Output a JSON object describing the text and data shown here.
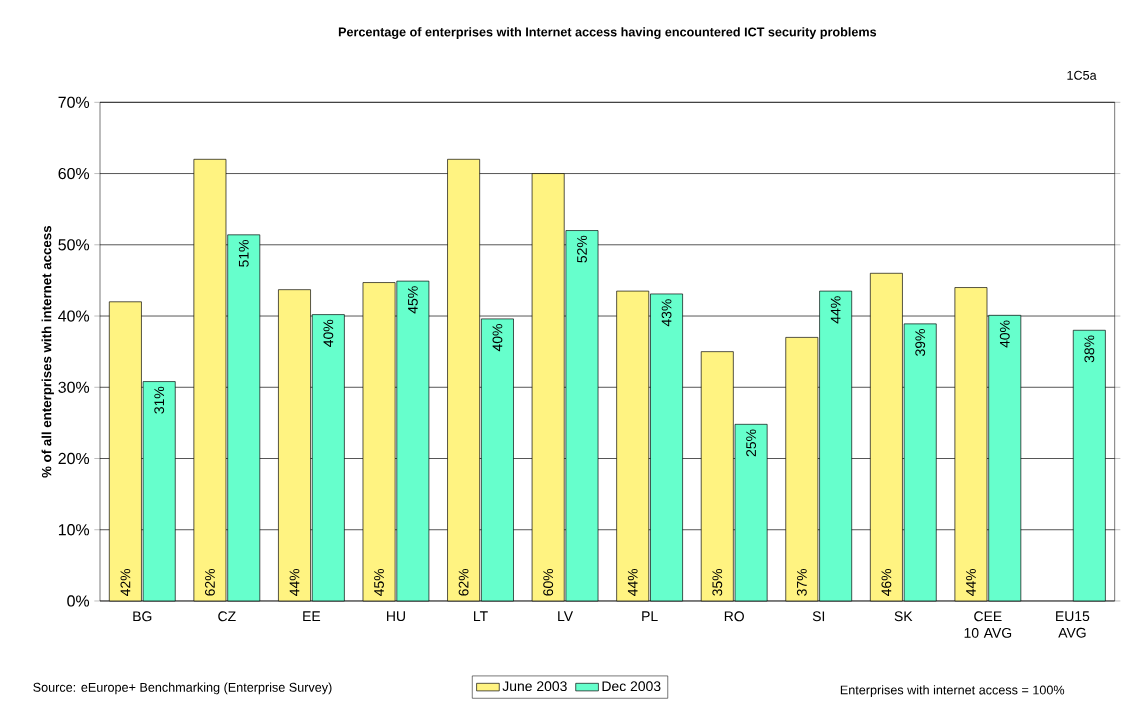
{
  "chart_data": {
    "type": "bar",
    "title": "Percentage of enterprises with Internet access having encountered ICT security problems",
    "ylabel": "% of all enterprises with internet access",
    "categories": [
      "BG",
      "CZ",
      "EE",
      "HU",
      "LT",
      "LV",
      "PL",
      "RO",
      "SI",
      "SK",
      "CEE 10 AVG",
      "EU15 AVG"
    ],
    "series": [
      {
        "name": "June 2003",
        "color": "#fff381",
        "values": [
          42,
          62,
          43.7,
          44.7,
          62,
          60,
          43.5,
          35,
          37,
          46,
          44,
          null
        ],
        "value_labels": [
          "42%",
          "62%",
          "44%",
          "45%",
          "62%",
          "60%",
          "44%",
          "35%",
          "37%",
          "46%",
          "44%",
          null
        ]
      },
      {
        "name": "Dec 2003",
        "color": "#66ffcc",
        "values": [
          30.8,
          51.4,
          40.2,
          44.9,
          39.6,
          52,
          43.1,
          24.8,
          43.5,
          38.9,
          40.1,
          38
        ],
        "value_labels": [
          "31%",
          "51%",
          "40%",
          "45%",
          "40%",
          "52%",
          "43%",
          "25%",
          "44%",
          "39%",
          "40%",
          "38%"
        ]
      }
    ],
    "ylim": [
      0,
      70
    ],
    "yticks": [
      {
        "value": 0,
        "label": "0%"
      },
      {
        "value": 10,
        "label": "10%"
      },
      {
        "value": 20,
        "label": "20%"
      },
      {
        "value": 30,
        "label": "30%"
      },
      {
        "value": 40,
        "label": "40%"
      },
      {
        "value": 50,
        "label": "50%"
      },
      {
        "value": 60,
        "label": "60%"
      },
      {
        "value": 70,
        "label": "70%"
      }
    ],
    "grid": "y",
    "legend": "bottom",
    "annotations": [
      "1C5a",
      "Source: eEurope+ Benchmarking (Enterprise Survey)",
      "Enterprises with internet access = 100%"
    ]
  }
}
